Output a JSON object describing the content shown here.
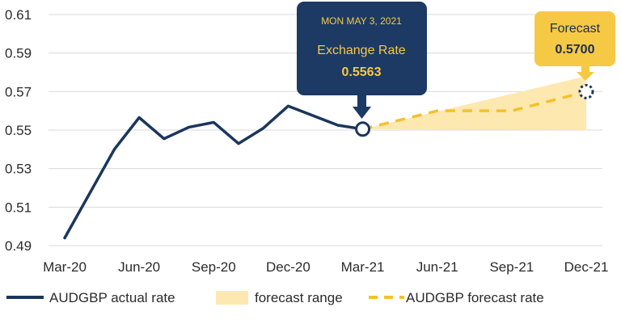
{
  "colors": {
    "actual": "#1a365d",
    "forecast": "#f5c02b",
    "range": "#fde8b0",
    "tooltip_bg": "#1c3a63",
    "tooltip_text": "#f6c945",
    "forecast_box": "#f6c945",
    "grid": "#d9d9d9"
  },
  "chart_data": {
    "type": "line",
    "x_tick_labels": [
      "Mar-20",
      "Jun-20",
      "Sep-20",
      "Dec-20",
      "Mar-21",
      "Jun-21",
      "Sep-21",
      "Dec-21"
    ],
    "y_tick_labels": [
      "0.49",
      "0.51",
      "0.53",
      "0.55",
      "0.57",
      "0.59",
      "0.61"
    ],
    "ylim": [
      0.49,
      0.61
    ],
    "grid": "horizontal",
    "legend_position": "bottom",
    "series": [
      {
        "name": "AUDGBP actual rate",
        "style": "solid",
        "points": [
          {
            "x": "2020-03",
            "y": 0.494
          },
          {
            "x": "2020-05",
            "y": 0.54
          },
          {
            "x": "2020-06",
            "y": 0.5565
          },
          {
            "x": "2020-07",
            "y": 0.5455
          },
          {
            "x": "2020-08",
            "y": 0.5515
          },
          {
            "x": "2020-09",
            "y": 0.554
          },
          {
            "x": "2020-10",
            "y": 0.543
          },
          {
            "x": "2020-11",
            "y": 0.551
          },
          {
            "x": "2020-12",
            "y": 0.5625
          },
          {
            "x": "2021-02",
            "y": 0.5525
          },
          {
            "x": "2021-03",
            "y": 0.5505
          }
        ]
      },
      {
        "name": "AUDGBP forecast rate",
        "style": "dashed",
        "points": [
          {
            "x": "2021-03",
            "y": 0.5505
          },
          {
            "x": "2021-06",
            "y": 0.56
          },
          {
            "x": "2021-09",
            "y": 0.56
          },
          {
            "x": "2021-12",
            "y": 0.57
          }
        ]
      },
      {
        "name": "forecast range",
        "style": "area",
        "points": [
          {
            "x": "2021-03",
            "low": 0.5505,
            "high": 0.5505
          },
          {
            "x": "2021-12",
            "low": 0.55,
            "high": 0.578
          }
        ]
      }
    ],
    "tooltip": {
      "date": "MON MAY 3, 2021",
      "label": "Exchange Rate",
      "value": "0.5563",
      "anchor": {
        "x": "2021-03",
        "y": 0.5505
      }
    },
    "forecast_callout": {
      "label": "Forecast",
      "value": "0.5700",
      "anchor": {
        "x": "2021-12",
        "y": 0.57
      }
    },
    "legend": [
      "AUDGBP actual rate",
      "forecast range",
      "AUDGBP forecast rate"
    ]
  }
}
